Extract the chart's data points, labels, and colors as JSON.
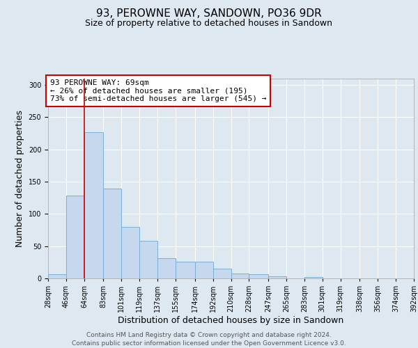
{
  "title": "93, PEROWNE WAY, SANDOWN, PO36 9DR",
  "subtitle": "Size of property relative to detached houses in Sandown",
  "xlabel": "Distribution of detached houses by size in Sandown",
  "ylabel": "Number of detached properties",
  "bin_edges": [
    28,
    46,
    64,
    83,
    101,
    119,
    137,
    155,
    174,
    192,
    210,
    228,
    247,
    265,
    283,
    301,
    319,
    338,
    356,
    374,
    392
  ],
  "bin_labels": [
    "28sqm",
    "46sqm",
    "64sqm",
    "83sqm",
    "101sqm",
    "119sqm",
    "137sqm",
    "155sqm",
    "174sqm",
    "192sqm",
    "210sqm",
    "228sqm",
    "247sqm",
    "265sqm",
    "283sqm",
    "301sqm",
    "319sqm",
    "338sqm",
    "356sqm",
    "374sqm",
    "392sqm"
  ],
  "bar_heights": [
    7,
    128,
    226,
    139,
    80,
    58,
    31,
    26,
    26,
    15,
    8,
    6,
    3,
    0,
    2,
    0,
    0,
    0,
    0,
    0
  ],
  "bar_color": "#c5d8ed",
  "bar_edge_color": "#7aafd4",
  "red_line_x": 64,
  "red_line_color": "#cc0000",
  "annotation_line1": "93 PEROWNE WAY: 69sqm",
  "annotation_line2": "← 26% of detached houses are smaller (195)",
  "annotation_line3": "73% of semi-detached houses are larger (545) →",
  "annotation_box_facecolor": "#ffffff",
  "annotation_box_edgecolor": "#cc0000",
  "ylim": [
    0,
    310
  ],
  "yticks": [
    0,
    50,
    100,
    150,
    200,
    250,
    300
  ],
  "background_color": "#dde8f0",
  "grid_color": "#ffffff",
  "title_fontsize": 11,
  "subtitle_fontsize": 9,
  "axis_label_fontsize": 9,
  "tick_fontsize": 7,
  "ann_fontsize": 8,
  "footer_line1": "Contains HM Land Registry data © Crown copyright and database right 2024.",
  "footer_line2": "Contains public sector information licensed under the Open Government Licence v3.0.",
  "footer_fontsize": 6.5
}
